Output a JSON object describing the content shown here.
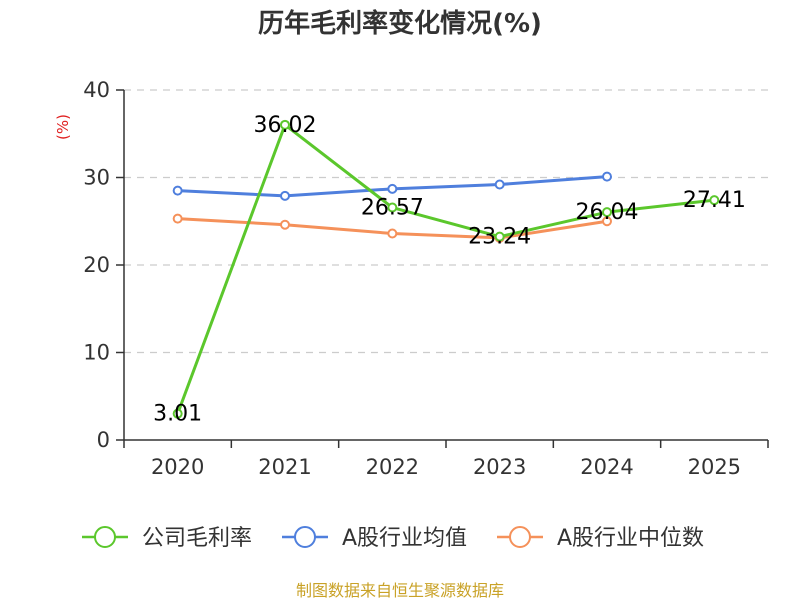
{
  "chart_data": {
    "type": "line",
    "title": "历年毛利率变化情况(%)",
    "ylabel": "(%)",
    "xlabel": "",
    "categories": [
      "2020",
      "2021",
      "2022",
      "2023",
      "2024",
      "2025"
    ],
    "ylim": [
      0,
      40
    ],
    "yticks": [
      0,
      10,
      20,
      30,
      40
    ],
    "grid": true,
    "legend_position": "bottom",
    "series": [
      {
        "name": "公司毛利率",
        "color": "#5bc72c",
        "labeled": true,
        "values": [
          3.01,
          36.02,
          26.57,
          23.24,
          26.04,
          27.41
        ],
        "labels": [
          "3.01",
          "36.02",
          "26.57",
          "23.24",
          "26.04",
          "27.41"
        ]
      },
      {
        "name": "A股行业均值",
        "color": "#4f7fdd",
        "labeled": false,
        "values": [
          28.5,
          27.9,
          28.7,
          29.2,
          30.1,
          null
        ]
      },
      {
        "name": "A股行业中位数",
        "color": "#f5915a",
        "labeled": false,
        "values": [
          25.3,
          24.6,
          23.6,
          23.1,
          25.0,
          null
        ]
      }
    ]
  },
  "source": {
    "text": "制图数据来自恒生聚源数据库",
    "color": "#c9a227"
  },
  "colors": {
    "axis": "#333333",
    "grid": "#cccccc",
    "ylabel": "#e02020"
  }
}
